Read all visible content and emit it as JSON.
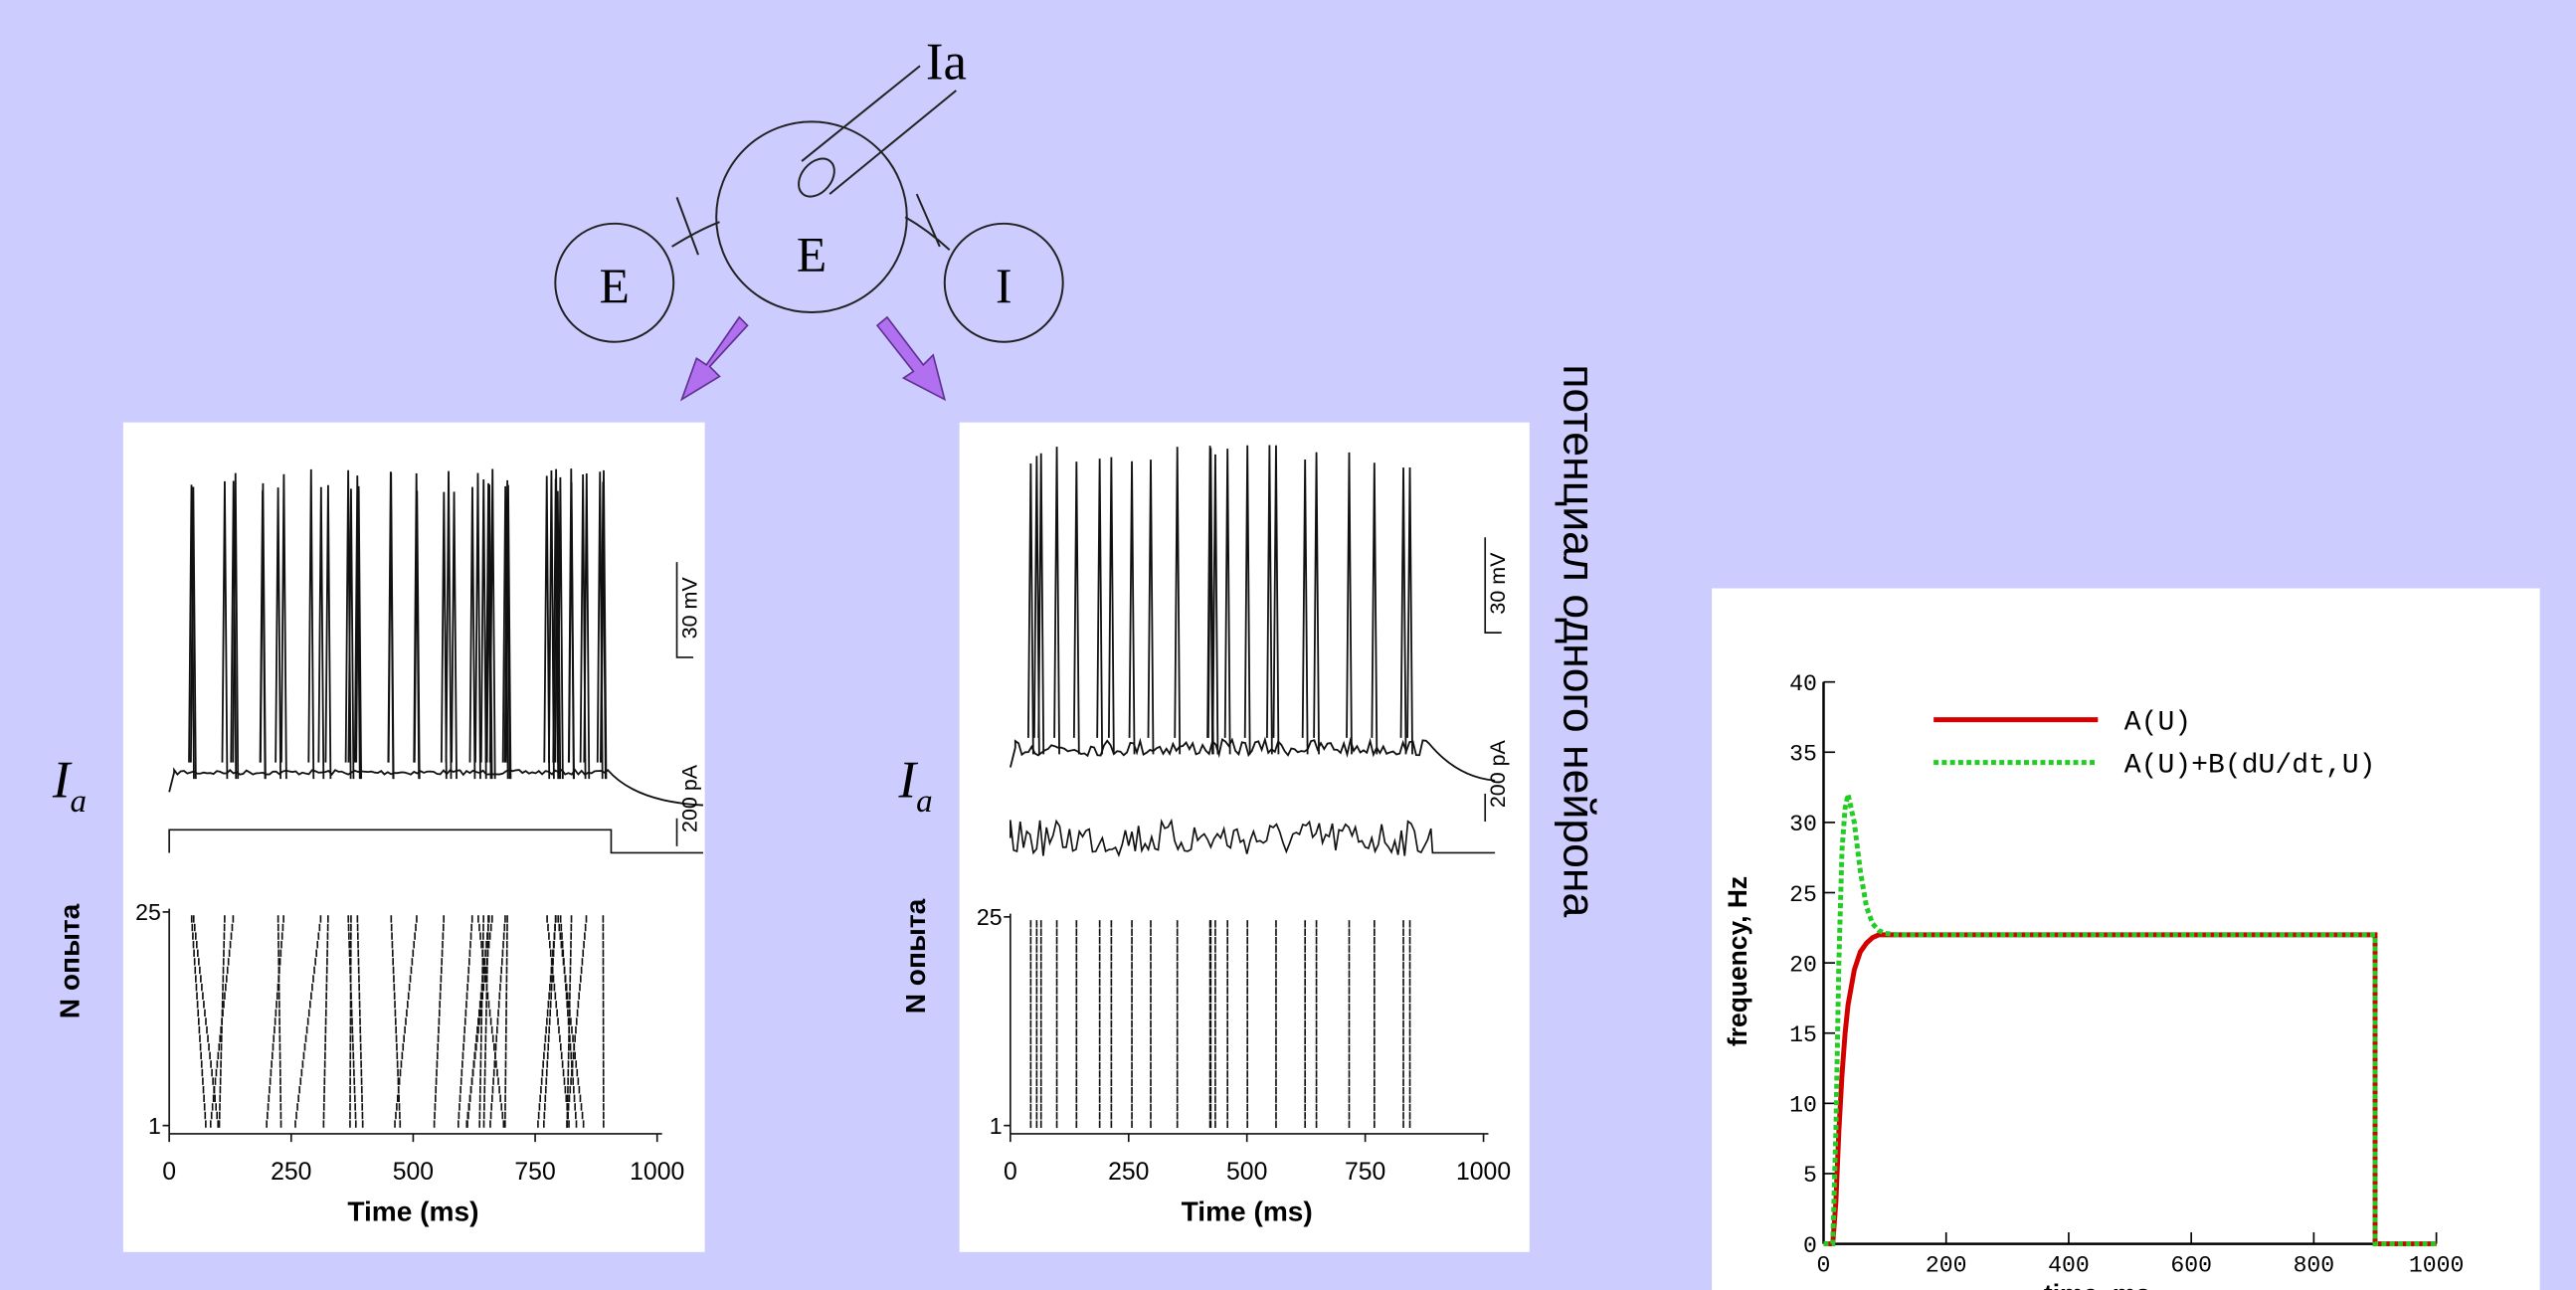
{
  "diagram": {
    "input": "Ia",
    "nodes": [
      {
        "label": "E"
      },
      {
        "label": "E"
      },
      {
        "label": "I"
      }
    ]
  },
  "caption": "потенциал одного нейрона",
  "panels": [
    {
      "current_label": "I",
      "current_subscript": "a",
      "y_label": "N опыта",
      "x_label": "Time (ms)",
      "xlim": [
        0,
        1000
      ],
      "xticks": [
        0,
        250,
        500,
        750,
        1000
      ],
      "ylim": [
        1,
        25
      ],
      "yticks": [
        1,
        25
      ],
      "scale_bars": [
        "30 mV",
        "200 pA"
      ]
    },
    {
      "current_label": "I",
      "current_subscript": "a",
      "y_label": "N опыта",
      "x_label": "Time (ms)",
      "xlim": [
        0,
        1000
      ],
      "xticks": [
        0,
        250,
        500,
        750,
        1000
      ],
      "ylim": [
        1,
        25
      ],
      "yticks": [
        1,
        25
      ],
      "scale_bars": [
        "30 mV",
        "200 pA"
      ]
    }
  ],
  "chart_data": {
    "type": "line",
    "y_label": "frequency, Hz",
    "x_label": "time, ms",
    "xlim": [
      0,
      1000
    ],
    "xticks": [
      0,
      200,
      400,
      600,
      800,
      1000
    ],
    "ylim": [
      0,
      40
    ],
    "yticks": [
      0,
      5,
      10,
      15,
      20,
      25,
      30,
      35,
      40
    ],
    "x": [
      0,
      15,
      20,
      25,
      30,
      35,
      40,
      50,
      60,
      70,
      80,
      90,
      100,
      120,
      200,
      400,
      600,
      800,
      900,
      900,
      1000
    ],
    "series": [
      {
        "name": "A(U)",
        "color": "#d40000",
        "dash": "solid",
        "values": [
          0,
          0,
          3,
          8,
          12,
          15,
          17,
          19.5,
          20.8,
          21.4,
          21.8,
          22,
          22,
          22,
          22,
          22,
          22,
          22,
          22,
          0,
          0
        ]
      },
      {
        "name": "A(U)+B(dU/dt,U)",
        "color": "#22cc22",
        "dash": "dotted",
        "values": [
          0,
          0,
          8,
          20,
          28,
          31,
          32,
          30,
          26.5,
          24,
          22.8,
          22.3,
          22.1,
          22,
          22,
          22,
          22,
          22,
          22,
          0,
          0
        ]
      }
    ]
  }
}
